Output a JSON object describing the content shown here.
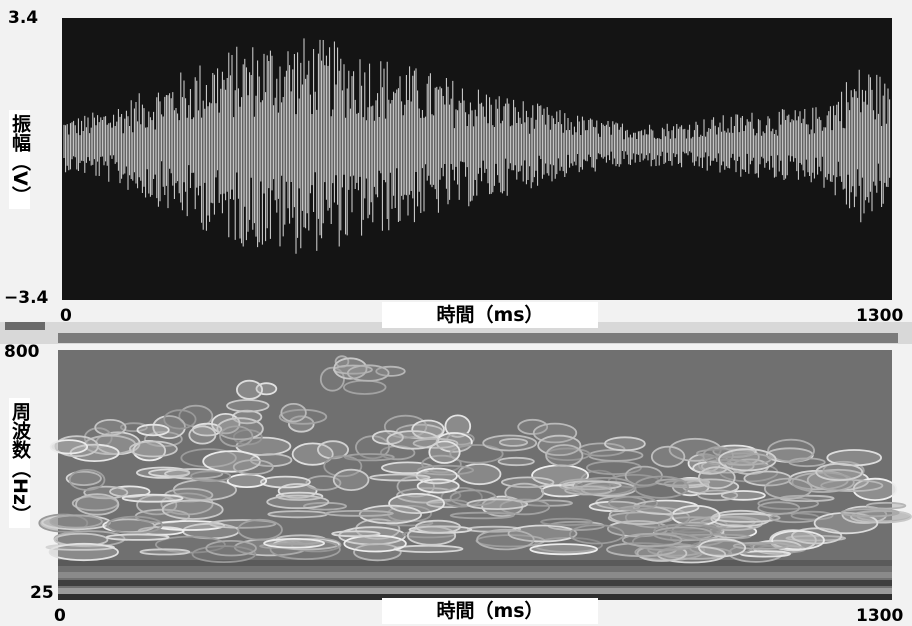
{
  "top_panel": {
    "y_label": "振幅（V）",
    "y_top": "3.4",
    "y_bottom": "−3.4",
    "x_start": "0",
    "x_label": "時間（ms）",
    "x_end": "1300"
  },
  "bottom_panel": {
    "y_label": "周波数（Hz）",
    "y_top": "800",
    "y_bottom": "25",
    "x_start": "0",
    "x_label": "時間（ms）",
    "x_end": "1300"
  }
}
